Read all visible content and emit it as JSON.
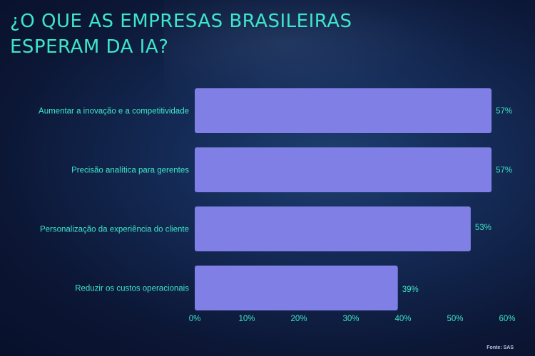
{
  "title": "¿O QUE AS EMPRESAS BRASILEIRAS\nESPERAM DA IA?",
  "source": "Fonte: SAS",
  "colors": {
    "bar": "#7f7fe6",
    "text": "#3ee6c9",
    "title": "#3ee6c9"
  },
  "chart_data": {
    "type": "bar",
    "orientation": "horizontal",
    "categories": [
      "Aumentar a inovação e a competitividade",
      "Precisão analítica para gerentes",
      "Personalização da experiência do cliente",
      "Reduzir os custos operacionais"
    ],
    "values": [
      57,
      57,
      53,
      39
    ],
    "value_labels": [
      "57%",
      "57%",
      "53%",
      "39%"
    ],
    "xlim": [
      0,
      60
    ],
    "xticks": [
      0,
      10,
      20,
      30,
      40,
      50,
      60
    ],
    "xtick_labels": [
      "0%",
      "10%",
      "20%",
      "30%",
      "40%",
      "50%",
      "60%"
    ],
    "grid": false
  }
}
